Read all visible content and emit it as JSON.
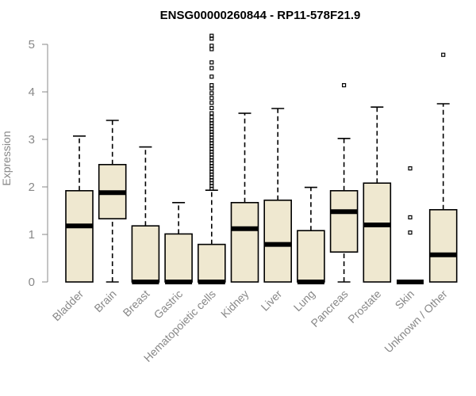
{
  "chart_data": {
    "type": "boxplot",
    "title": "ENSG00000260844 - RP11-578F21.9",
    "ylabel": "Expression",
    "xlabel": "",
    "ylim": [
      0,
      5.2
    ],
    "yticks": [
      "0",
      "1",
      "2",
      "3",
      "4",
      "5"
    ],
    "grid": false,
    "legend": "none",
    "colors": {
      "box_fill": "#efe8d0",
      "stroke": "#000000",
      "axis": "#888888"
    },
    "categories": [
      "Bladder",
      "Brain",
      "Breast",
      "Gastric",
      "Hematopoietic cells",
      "Kidney",
      "Liver",
      "Lung",
      "Pancreas",
      "Prostate",
      "Skin",
      "Unknown / Other"
    ],
    "boxes": [
      {
        "category": "Bladder",
        "min": 0,
        "q1": 0,
        "median": 1.18,
        "q3": 1.92,
        "max": 3.07,
        "outliers": []
      },
      {
        "category": "Brain",
        "min": 0,
        "q1": 1.33,
        "median": 1.88,
        "q3": 2.47,
        "max": 3.4,
        "outliers": []
      },
      {
        "category": "Breast",
        "min": 0,
        "q1": 0,
        "median": 0,
        "q3": 1.18,
        "max": 2.84,
        "outliers": []
      },
      {
        "category": "Gastric",
        "min": 0,
        "q1": 0,
        "median": 0,
        "q3": 1.01,
        "max": 1.67,
        "outliers": []
      },
      {
        "category": "Hematopoietic cells",
        "min": 0,
        "q1": 0,
        "median": 0,
        "q3": 0.79,
        "max": 1.93,
        "outliers": [
          1.96,
          2.02,
          2.08,
          2.14,
          2.2,
          2.26,
          2.32,
          2.38,
          2.44,
          2.5,
          2.56,
          2.62,
          2.68,
          2.74,
          2.8,
          2.86,
          2.92,
          2.98,
          3.04,
          3.1,
          3.16,
          3.22,
          3.28,
          3.34,
          3.4,
          3.47,
          3.55,
          3.66,
          3.77,
          3.87,
          3.97,
          4.07,
          4.14,
          4.32,
          4.5,
          4.62,
          4.9,
          4.97,
          5.12,
          5.18
        ]
      },
      {
        "category": "Kidney",
        "min": 0,
        "q1": 0,
        "median": 1.12,
        "q3": 1.67,
        "max": 3.55,
        "outliers": []
      },
      {
        "category": "Liver",
        "min": 0,
        "q1": 0,
        "median": 0.79,
        "q3": 1.72,
        "max": 3.65,
        "outliers": []
      },
      {
        "category": "Lung",
        "min": 0,
        "q1": 0,
        "median": 0,
        "q3": 1.08,
        "max": 1.99,
        "outliers": []
      },
      {
        "category": "Pancreas",
        "min": 0,
        "q1": 0.63,
        "median": 1.48,
        "q3": 1.92,
        "max": 3.02,
        "outliers": [
          4.14
        ]
      },
      {
        "category": "Prostate",
        "min": 0,
        "q1": 0,
        "median": 1.2,
        "q3": 2.08,
        "max": 3.68,
        "outliers": []
      },
      {
        "category": "Skin",
        "min": 0,
        "q1": 0,
        "median": 0,
        "q3": 0,
        "max": 0,
        "outliers": [
          1.04,
          1.36,
          2.39
        ]
      },
      {
        "category": "Unknown / Other",
        "min": 0,
        "q1": 0,
        "median": 0.57,
        "q3": 1.52,
        "max": 3.75,
        "outliers": [
          4.78
        ]
      }
    ]
  }
}
